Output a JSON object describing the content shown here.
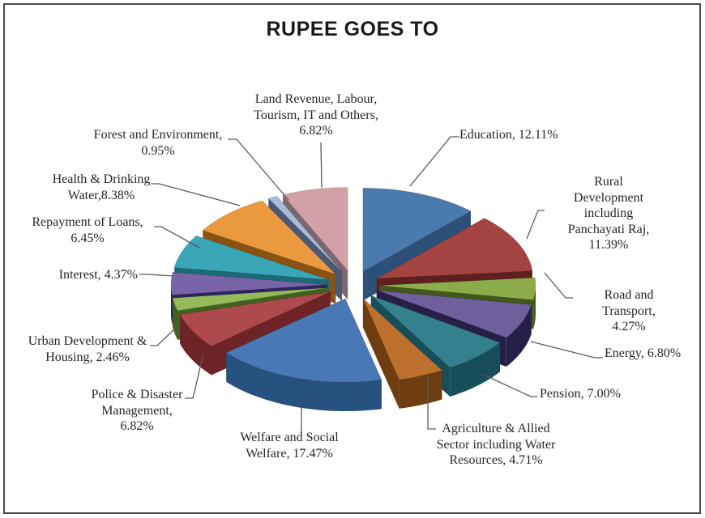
{
  "title": "RUPEE GOES TO",
  "frame": {
    "border_color": "#4b4b4b",
    "background": "#ffffff"
  },
  "leader_line_color": "#5a5a5a",
  "chart_data": {
    "type": "pie",
    "title": "RUPEE GOES TO",
    "unit": "%",
    "effect": "3d-exploded",
    "start_angle_deg": 0,
    "direction": "clockwise",
    "legend_position": "none",
    "total": 100.0,
    "slices": [
      {
        "label": "Education",
        "value": 12.11,
        "display": "Education, 12.11%",
        "color": "#4a7aae",
        "side_color": "#2c5077"
      },
      {
        "label": "Rural Development including Panchayati Raj",
        "value": 11.39,
        "display": "Rural Development\nincluding Panchayati Raj,\n11.39%",
        "color": "#a34442",
        "side_color": "#5e1f1e"
      },
      {
        "label": "Road and Transport",
        "value": 4.27,
        "display": "Road and Transport,\n4.27%",
        "color": "#8cac4b",
        "side_color": "#42581b"
      },
      {
        "label": "Energy",
        "value": 6.8,
        "display": "Energy, 6.80%",
        "color": "#6f5f9d",
        "side_color": "#262049"
      },
      {
        "label": "Pension",
        "value": 7.0,
        "display": "Pension, 7.00%",
        "color": "#35808f",
        "side_color": "#174e59"
      },
      {
        "label": "Agriculture & Allied Sector including Water Resources",
        "value": 4.71,
        "display": "Agriculture & Allied\nSector including Water\nResources, 4.71%",
        "color": "#be712f",
        "side_color": "#6e3d10"
      },
      {
        "label": "Welfare and Social Welfare",
        "value": 17.47,
        "display": "Welfare and Social\nWelfare, 17.47%",
        "color": "#4879b6",
        "side_color": "#27517e"
      },
      {
        "label": "Police & Disaster Management",
        "value": 6.82,
        "display": "Police & Disaster\nManagement,\n6.82%",
        "color": "#ae4a4e",
        "side_color": "#6e2426"
      },
      {
        "label": "Urban Development & Housing",
        "value": 2.46,
        "display": "Urban Development &\nHousing, 2.46%",
        "color": "#94ba5a",
        "side_color": "#42611f"
      },
      {
        "label": "Interest",
        "value": 4.37,
        "display": "Interest, 4.37%",
        "color": "#7864a6",
        "side_color": "#2e2464"
      },
      {
        "label": "Repayment of Loans",
        "value": 6.45,
        "display": "Repayment of Loans,\n6.45%",
        "color": "#3aa7b9",
        "side_color": "#1c6a76"
      },
      {
        "label": "Health & Drinking Water",
        "value": 8.38,
        "display": "Health & Drinking\nWater,8.38%",
        "color": "#eb993e",
        "side_color": "#8a5213"
      },
      {
        "label": "Forest and Environment",
        "value": 0.95,
        "display": "Forest and Environment,\n0.95%",
        "color": "#a9bad8",
        "side_color": "#4d5875"
      },
      {
        "label": "Land Revenue, Labour, Tourism, IT and Others",
        "value": 6.82,
        "display": "Land Revenue, Labour,\nTourism, IT and Others,\n6.82%",
        "color": "#d2a0a7",
        "side_color": "#7a6870"
      }
    ]
  }
}
